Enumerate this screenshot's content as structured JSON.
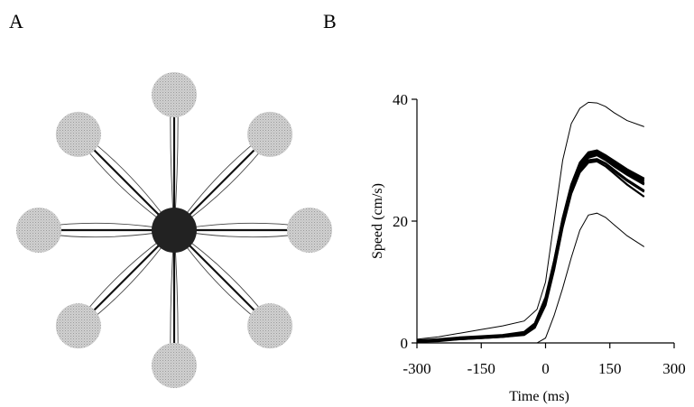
{
  "panels": {
    "a": {
      "label": "A"
    },
    "b": {
      "label": "B"
    }
  },
  "center_out": {
    "directions_deg": [
      90,
      45,
      0,
      -45,
      -90,
      -135,
      180,
      135
    ],
    "target_color": "#d0d0d0",
    "center_color": "#222222",
    "mean_path_color": "#111111",
    "spread_path_color": "#444444"
  },
  "chart_data": {
    "type": "line",
    "xlabel": "Time (ms)",
    "ylabel": "Speed (cm/s)",
    "xlim": [
      -300,
      300
    ],
    "ylim": [
      0,
      40
    ],
    "xticks": [
      -300,
      -150,
      0,
      150,
      300
    ],
    "yticks": [
      0,
      20,
      40
    ],
    "x_tick_labels": [
      "-300",
      "-150",
      "0",
      "150",
      "300"
    ],
    "y_tick_labels": [
      "0",
      "20",
      "40"
    ],
    "grid": false,
    "envelope": {
      "upper": {
        "x": [
          -300,
          -250,
          -200,
          -150,
          -100,
          -50,
          -20,
          0,
          20,
          40,
          60,
          80,
          100,
          120,
          140,
          160,
          190,
          230
        ],
        "y": [
          0.6,
          1.0,
          1.6,
          2.2,
          2.8,
          3.6,
          5.5,
          10.0,
          20.0,
          30.0,
          36.0,
          38.5,
          39.5,
          39.4,
          38.8,
          37.8,
          36.5,
          35.5
        ]
      },
      "lower": {
        "x": [
          -300,
          -250,
          -200,
          -150,
          -100,
          -50,
          -20,
          0,
          20,
          40,
          60,
          80,
          100,
          120,
          140,
          160,
          190,
          230
        ],
        "y": [
          0.0,
          0.0,
          0.0,
          0.0,
          0.0,
          0.0,
          0.0,
          0.8,
          4.5,
          9.0,
          14.0,
          18.5,
          21.0,
          21.3,
          20.6,
          19.4,
          17.6,
          15.8
        ]
      }
    },
    "mean_traces": {
      "x": [
        -300,
        -250,
        -200,
        -150,
        -100,
        -50,
        -25,
        0,
        20,
        40,
        60,
        80,
        100,
        120,
        140,
        160,
        190,
        230
      ],
      "y": [
        [
          0.3,
          0.5,
          0.8,
          1.0,
          1.2,
          1.6,
          3.0,
          7.0,
          13.0,
          20.0,
          25.5,
          29.0,
          30.8,
          31.2,
          30.5,
          29.5,
          28.0,
          26.5
        ],
        [
          0.2,
          0.4,
          0.7,
          0.9,
          1.1,
          1.4,
          2.6,
          6.5,
          12.5,
          19.5,
          25.0,
          28.8,
          30.4,
          30.8,
          30.0,
          29.0,
          27.6,
          26.0
        ],
        [
          0.4,
          0.6,
          0.9,
          1.1,
          1.3,
          1.8,
          3.2,
          7.5,
          13.5,
          20.5,
          26.0,
          29.6,
          31.3,
          31.6,
          30.8,
          29.8,
          28.3,
          26.8
        ],
        [
          0.3,
          0.5,
          0.7,
          0.9,
          1.1,
          1.5,
          2.8,
          6.8,
          12.8,
          19.8,
          25.2,
          28.5,
          30.0,
          30.2,
          29.5,
          28.4,
          26.8,
          25.0
        ],
        [
          0.2,
          0.3,
          0.6,
          0.8,
          1.0,
          1.3,
          2.5,
          6.2,
          12.0,
          19.0,
          24.5,
          28.0,
          29.6,
          29.8,
          29.0,
          27.8,
          26.0,
          24.0
        ],
        [
          0.3,
          0.4,
          0.7,
          0.9,
          1.1,
          1.5,
          2.9,
          7.0,
          13.2,
          20.2,
          25.8,
          29.3,
          31.0,
          31.4,
          30.8,
          29.9,
          28.5,
          27.0
        ],
        [
          0.2,
          0.4,
          0.6,
          0.8,
          1.0,
          1.4,
          2.6,
          6.4,
          12.2,
          19.2,
          24.8,
          28.3,
          29.9,
          30.1,
          29.4,
          28.2,
          26.6,
          24.8
        ],
        [
          0.4,
          0.5,
          0.8,
          1.0,
          1.2,
          1.7,
          3.1,
          7.2,
          13.4,
          20.4,
          25.6,
          29.0,
          30.6,
          30.9,
          30.2,
          29.2,
          27.8,
          26.2
        ]
      ]
    }
  }
}
